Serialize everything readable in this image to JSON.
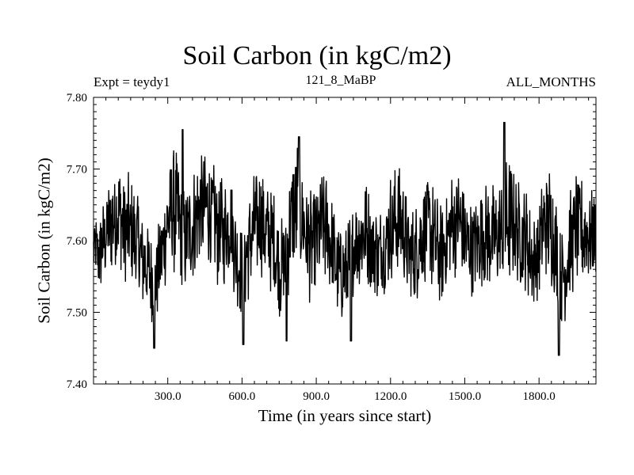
{
  "chart_data": {
    "type": "line",
    "title": "Soil Carbon (in kgC/m2)",
    "experiment_label": "Expt = teydy1",
    "subtitle": "121_8_MaBP",
    "season": "ALL_MONTHS",
    "xlabel": "Time (in years since start)",
    "ylabel": "Soil Carbon (in kgC/m2)",
    "xlim": [
      0,
      2030
    ],
    "ylim": [
      7.4,
      7.8
    ],
    "xticks": [
      {
        "value": 300,
        "label": "300.0"
      },
      {
        "value": 600,
        "label": "600.0"
      },
      {
        "value": 900,
        "label": "900.0"
      },
      {
        "value": 1200,
        "label": "1200.0"
      },
      {
        "value": 1500,
        "label": "1500.0"
      },
      {
        "value": 1800,
        "label": "1800.0"
      }
    ],
    "yticks": [
      {
        "value": 7.4,
        "label": "7.40"
      },
      {
        "value": 7.5,
        "label": "7.50"
      },
      {
        "value": 7.6,
        "label": "7.60"
      },
      {
        "value": 7.7,
        "label": "7.70"
      },
      {
        "value": 7.8,
        "label": "7.80"
      }
    ],
    "series": [
      {
        "name": "Soil Carbon",
        "color": "#000000",
        "envelope": {
          "x": [
            0,
            25,
            50,
            75,
            100,
            125,
            150,
            175,
            200,
            225,
            250,
            275,
            300,
            325,
            350,
            375,
            400,
            425,
            450,
            475,
            500,
            525,
            550,
            575,
            600,
            625,
            650,
            675,
            700,
            725,
            750,
            775,
            800,
            825,
            850,
            875,
            900,
            925,
            950,
            975,
            1000,
            1025,
            1050,
            1075,
            1100,
            1125,
            1150,
            1175,
            1200,
            1225,
            1250,
            1275,
            1300,
            1325,
            1350,
            1375,
            1400,
            1425,
            1450,
            1475,
            1500,
            1525,
            1550,
            1575,
            1600,
            1625,
            1650,
            1675,
            1700,
            1725,
            1750,
            1775,
            1800,
            1825,
            1850,
            1875,
            1900,
            1925,
            1950,
            1975,
            2000,
            2030
          ],
          "mean": [
            7.59,
            7.58,
            7.61,
            7.63,
            7.64,
            7.62,
            7.61,
            7.6,
            7.57,
            7.56,
            7.54,
            7.58,
            7.63,
            7.65,
            7.62,
            7.6,
            7.62,
            7.64,
            7.65,
            7.64,
            7.62,
            7.61,
            7.63,
            7.58,
            7.55,
            7.59,
            7.62,
            7.63,
            7.61,
            7.6,
            7.56,
            7.57,
            7.63,
            7.65,
            7.62,
            7.59,
            7.6,
            7.62,
            7.61,
            7.57,
            7.55,
            7.56,
            7.59,
            7.61,
            7.61,
            7.6,
            7.58,
            7.59,
            7.62,
            7.63,
            7.62,
            7.58,
            7.58,
            7.61,
            7.62,
            7.6,
            7.58,
            7.6,
            7.62,
            7.63,
            7.6,
            7.59,
            7.6,
            7.61,
            7.61,
            7.6,
            7.61,
            7.63,
            7.62,
            7.61,
            7.6,
            7.57,
            7.59,
            7.63,
            7.62,
            7.57,
            7.55,
            7.59,
            7.62,
            7.61,
            7.61,
            7.6
          ],
          "amplitude": [
            0.05,
            0.06,
            0.07,
            0.08,
            0.08,
            0.09,
            0.08,
            0.08,
            0.07,
            0.07,
            0.06,
            0.07,
            0.08,
            0.1,
            0.08,
            0.08,
            0.08,
            0.09,
            0.08,
            0.08,
            0.09,
            0.08,
            0.08,
            0.07,
            0.07,
            0.08,
            0.08,
            0.08,
            0.08,
            0.08,
            0.07,
            0.07,
            0.09,
            0.1,
            0.08,
            0.08,
            0.08,
            0.09,
            0.08,
            0.07,
            0.07,
            0.07,
            0.07,
            0.08,
            0.08,
            0.07,
            0.07,
            0.07,
            0.08,
            0.08,
            0.08,
            0.07,
            0.07,
            0.08,
            0.08,
            0.08,
            0.07,
            0.08,
            0.08,
            0.08,
            0.08,
            0.07,
            0.07,
            0.08,
            0.08,
            0.08,
            0.09,
            0.1,
            0.08,
            0.08,
            0.08,
            0.07,
            0.07,
            0.08,
            0.09,
            0.08,
            0.07,
            0.08,
            0.08,
            0.08,
            0.07,
            0.06
          ]
        },
        "minima": [
          {
            "x": 245,
            "y": 7.45
          },
          {
            "x": 605,
            "y": 7.455
          },
          {
            "x": 780,
            "y": 7.46
          },
          {
            "x": 1040,
            "y": 7.46
          },
          {
            "x": 1880,
            "y": 7.44
          }
        ],
        "maxima": [
          {
            "x": 360,
            "y": 7.755
          },
          {
            "x": 830,
            "y": 7.745
          },
          {
            "x": 1660,
            "y": 7.765
          }
        ]
      }
    ]
  }
}
